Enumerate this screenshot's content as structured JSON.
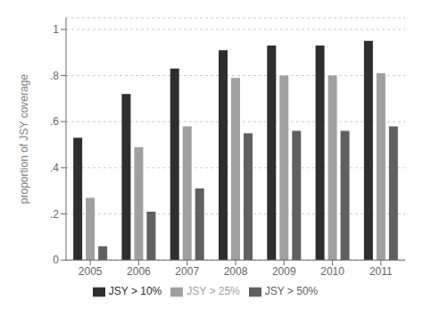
{
  "chart_data": {
    "type": "bar",
    "categories": [
      "2005",
      "2006",
      "2007",
      "2008",
      "2009",
      "2010",
      "2011"
    ],
    "series": [
      {
        "name": "JSY > 10%",
        "color": "#2e2e2e",
        "values": [
          0.53,
          0.72,
          0.83,
          0.91,
          0.93,
          0.93,
          0.95
        ]
      },
      {
        "name": "JSY > 25%",
        "color": "#a0a0a0",
        "values": [
          0.27,
          0.49,
          0.58,
          0.79,
          0.8,
          0.8,
          0.81
        ]
      },
      {
        "name": "JSY > 50%",
        "color": "#606060",
        "values": [
          0.06,
          0.21,
          0.31,
          0.55,
          0.56,
          0.56,
          0.58
        ]
      }
    ],
    "ylabel": "proportion of JSY coverage",
    "ylim": [
      0,
      1.05
    ],
    "yticks": [
      0,
      {
        "value": 0.2,
        "label": ".2"
      },
      {
        "value": 0.4,
        "label": ".4"
      },
      {
        "value": 0.6,
        "label": ".6"
      },
      {
        "value": 0.8,
        "label": ".8"
      },
      1
    ],
    "grid": true,
    "legend": "bottom"
  }
}
